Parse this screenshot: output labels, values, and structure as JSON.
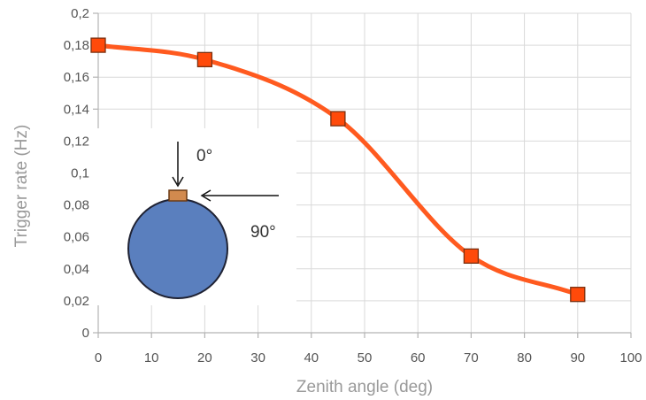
{
  "chart_data": {
    "type": "line",
    "xlabel": "Zenith angle (deg)",
    "ylabel": "Trigger rate (Hz)",
    "xlim": [
      0,
      100
    ],
    "ylim": [
      0,
      0.2
    ],
    "x_ticks": [
      "0",
      "10",
      "20",
      "30",
      "40",
      "50",
      "60",
      "70",
      "80",
      "90",
      "100"
    ],
    "y_ticks": [
      "0",
      "0,02",
      "0,04",
      "0,06",
      "0,08",
      "0,1",
      "0,12",
      "0,14",
      "0,16",
      "0,18",
      "0,2"
    ],
    "grid": true,
    "smooth": true,
    "series": [
      {
        "color": "#ff5a1f",
        "marker_fill": "#ff4a0a",
        "marker_stroke": "#7a3010",
        "x": [
          0,
          20,
          45,
          70,
          90
        ],
        "y": [
          0.18,
          0.171,
          0.134,
          0.048,
          0.024
        ]
      }
    ],
    "annotations": {
      "angle_zero_label": "0°",
      "angle_ninety_label": "90°",
      "sphere_color": "#5a7fbe",
      "sphere_stroke": "#1f2233",
      "detector_color": "#d28a4e"
    }
  }
}
